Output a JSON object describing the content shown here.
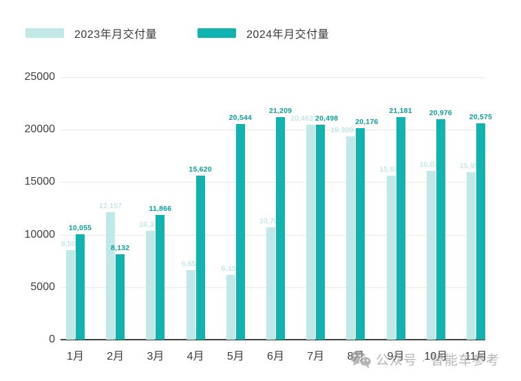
{
  "legend": {
    "items": [
      {
        "label": "2023年月交付量",
        "color": "#bfe8e6"
      },
      {
        "label": "2024年月交付量",
        "color": "#12b2ae"
      }
    ]
  },
  "chart_data": {
    "type": "bar",
    "title": "",
    "categories": [
      "1月",
      "2月",
      "3月",
      "4月",
      "5月",
      "6月",
      "7月",
      "8月",
      "9月",
      "10月",
      "11月"
    ],
    "series": [
      {
        "name": "2023年月交付量",
        "color": "#bfe8e6",
        "label_color": "#a9dedc",
        "values": [
          8506,
          12157,
          10378,
          6658,
          6155,
          10707,
          20463,
          19329,
          15641,
          16074,
          15959
        ]
      },
      {
        "name": "2024年月交付量",
        "color": "#12b2ae",
        "label_color": "#0aa09c",
        "values": [
          10055,
          8132,
          11866,
          15620,
          20544,
          21209,
          20498,
          20176,
          21181,
          20976,
          20575
        ]
      }
    ],
    "xlabel": "",
    "ylabel": "",
    "ylim": [
      0,
      25000
    ],
    "yticks": [
      0,
      5000,
      10000,
      15000,
      20000,
      25000
    ],
    "grid": true,
    "legend_position": "top",
    "value_labels": true
  },
  "watermark": {
    "icon": "wechat-icon",
    "text": "公众号 · 智能车参考"
  }
}
